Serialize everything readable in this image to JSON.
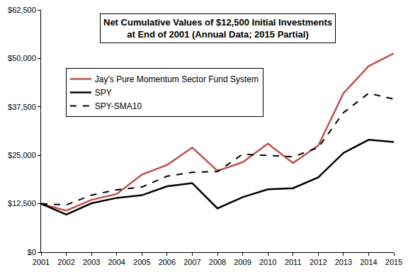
{
  "chart_data": {
    "type": "line",
    "title": "Net Cumulative Values of $12,500 Initial Investments\nat End of 2001 (Annual Data; 2015 Partial)",
    "x": [
      2001,
      2002,
      2003,
      2004,
      2005,
      2006,
      2007,
      2008,
      2009,
      2010,
      2011,
      2012,
      2013,
      2014,
      2015
    ],
    "series": [
      {
        "name": "Jay's Pure Momentum Sector Fund System",
        "color": "#c0504d",
        "line_style": "solid",
        "values": [
          12500,
          10700,
          13500,
          15000,
          20000,
          22500,
          27000,
          21000,
          23200,
          28000,
          23000,
          27500,
          41000,
          48000,
          51300
        ]
      },
      {
        "name": "SPY",
        "color": "#000000",
        "line_style": "solid",
        "values": [
          12500,
          9700,
          12600,
          14000,
          14700,
          17000,
          17800,
          11300,
          14200,
          16200,
          16500,
          19300,
          25600,
          29000,
          28400
        ]
      },
      {
        "name": "SPY-SMA10",
        "color": "#000000",
        "line_style": "dash",
        "values": [
          12500,
          12200,
          14700,
          16100,
          16800,
          19600,
          20600,
          20800,
          25300,
          25000,
          24600,
          27000,
          36000,
          41000,
          39500
        ]
      }
    ],
    "xlim": [
      2001,
      2015
    ],
    "xticks": [
      2001,
      2002,
      2003,
      2004,
      2005,
      2006,
      2007,
      2008,
      2009,
      2010,
      2011,
      2012,
      2013,
      2014,
      2015
    ],
    "ylim": [
      0,
      62500
    ],
    "yticks": [
      {
        "value": 0,
        "label": "$0"
      },
      {
        "value": 12500,
        "label": "$12,500"
      },
      {
        "value": 25000,
        "label": "$25,000"
      },
      {
        "value": 37500,
        "label": "$37,500"
      },
      {
        "value": 50000,
        "label": "$50,000"
      },
      {
        "value": 62500,
        "label": "$62,500"
      }
    ],
    "grid": false,
    "legend": "upper left"
  }
}
